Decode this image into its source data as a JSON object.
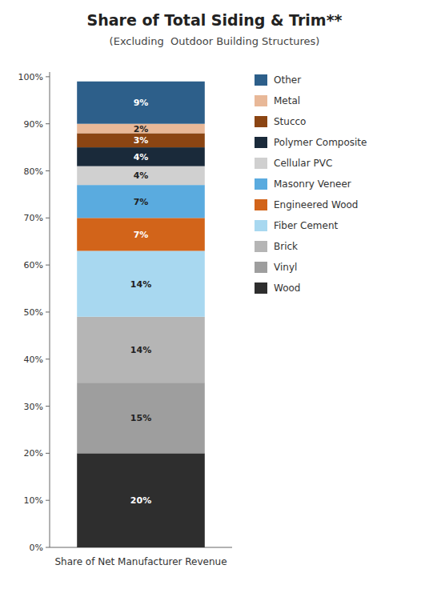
{
  "chart_data": {
    "type": "bar",
    "stacked": true,
    "title": "Share of Total Siding & Trim**",
    "subtitle": "(Excluding  Outdoor Building Structures)",
    "x_label": "Share of Net Manufacturer Revenue",
    "categories": [
      null
    ],
    "series": [
      {
        "name": "Wood",
        "color": "#2e2e2e",
        "values": [
          20
        ],
        "value_labels": [
          "20%"
        ]
      },
      {
        "name": "Vinyl",
        "color": "#9e9e9e",
        "values": [
          15
        ],
        "value_labels": [
          "15%"
        ]
      },
      {
        "name": "Brick",
        "color": "#b5b5b5",
        "values": [
          14
        ],
        "value_labels": [
          "14%"
        ]
      },
      {
        "name": "Fiber Cement",
        "color": "#a8d8f0",
        "values": [
          14
        ],
        "value_labels": [
          "14%"
        ]
      },
      {
        "name": "Engineered Wood",
        "color": "#d2641a",
        "values": [
          7
        ],
        "value_labels": [
          "7%"
        ]
      },
      {
        "name": "Masonry Veneer",
        "color": "#5aabdf",
        "values": [
          7
        ],
        "value_labels": [
          "7%"
        ]
      },
      {
        "name": "Cellular PVC",
        "color": "#d0d0d0",
        "values": [
          4
        ],
        "value_labels": [
          "4%"
        ]
      },
      {
        "name": "Polymer Composite",
        "color": "#1a2a3a",
        "values": [
          4
        ],
        "value_labels": [
          "4%"
        ]
      },
      {
        "name": "Stucco",
        "color": "#8b4513",
        "values": [
          3
        ],
        "value_labels": [
          "3%"
        ]
      },
      {
        "name": "Metal",
        "color": "#e8b898",
        "values": [
          2
        ],
        "value_labels": [
          "2%"
        ]
      },
      {
        "name": "Other",
        "color": "#2d5f8a",
        "values": [
          9
        ],
        "value_labels": [
          "9%"
        ]
      }
    ],
    "ylim": [
      0,
      101
    ],
    "yticks": [
      {
        "value": 0,
        "label": "0%"
      },
      {
        "value": 10,
        "label": "10%"
      },
      {
        "value": 20,
        "label": "20%"
      },
      {
        "value": 30,
        "label": "30%"
      },
      {
        "value": 40,
        "label": "40%"
      },
      {
        "value": 50,
        "label": "50%"
      },
      {
        "value": 60,
        "label": "60%"
      },
      {
        "value": 70,
        "label": "70%"
      },
      {
        "value": 80,
        "label": "80%"
      },
      {
        "value": 90,
        "label": "90%"
      },
      {
        "value": 100,
        "label": "100%"
      }
    ],
    "grid": false,
    "legend": "right",
    "data_labels": true
  }
}
